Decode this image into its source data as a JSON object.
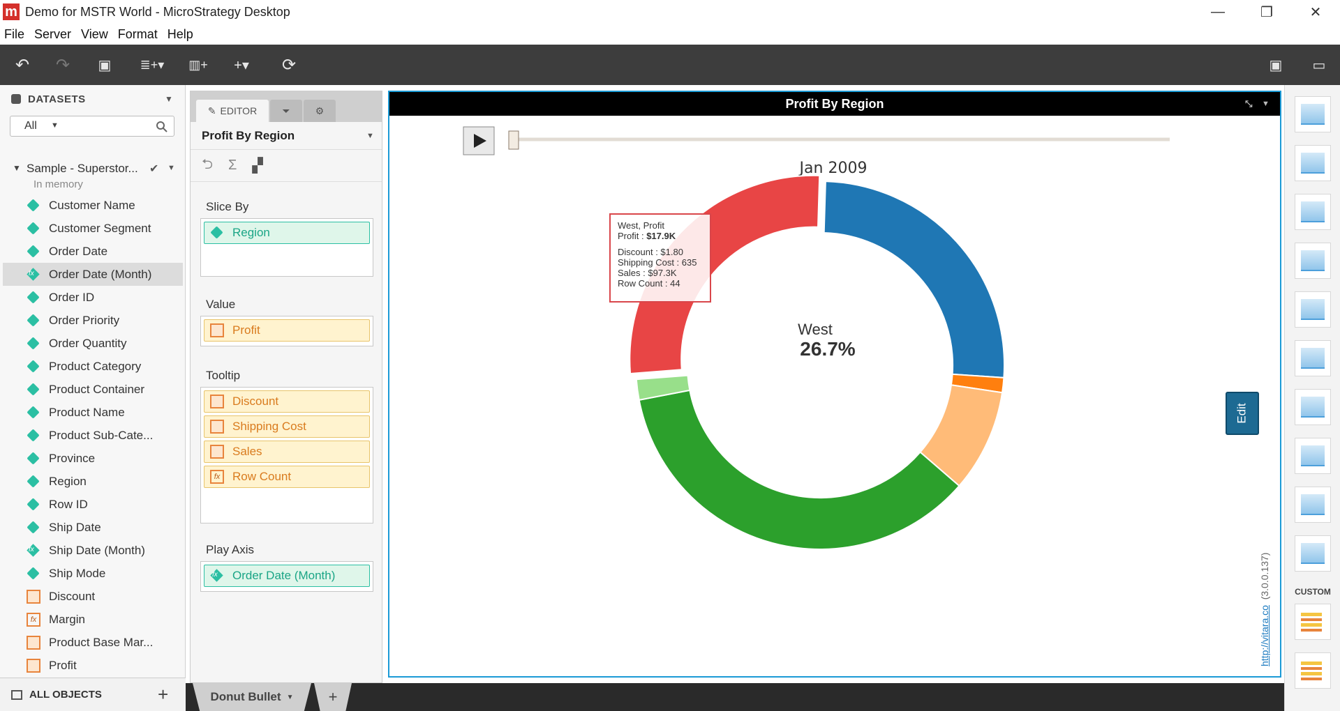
{
  "window": {
    "title": "Demo for MSTR World - MicroStrategy Desktop",
    "logo_text": "m",
    "controls": [
      "—",
      "❐",
      "✕"
    ]
  },
  "menu": [
    "File",
    "Server",
    "View",
    "Format",
    "Help"
  ],
  "toolbar": {
    "undo_icon": "↶",
    "redo_icon": "↷",
    "save_icon": "▣",
    "add_data_icon": "≣+▾",
    "add_viz_icon": "▥+",
    "add_icon": "+▾",
    "refresh_icon": "⟳",
    "present_icon": "▭",
    "share_icon": "▣"
  },
  "datasets": {
    "header": "DATASETS",
    "filter_value": "All",
    "dataset_name": "Sample - Superstor...",
    "dataset_status": "In memory",
    "items": [
      {
        "label": "Customer Name",
        "type": "attr"
      },
      {
        "label": "Customer Segment",
        "type": "attr"
      },
      {
        "label": "Order Date",
        "type": "attr"
      },
      {
        "label": "Order Date (Month)",
        "type": "derived"
      },
      {
        "label": "Order ID",
        "type": "attr"
      },
      {
        "label": "Order Priority",
        "type": "attr"
      },
      {
        "label": "Order Quantity",
        "type": "attr"
      },
      {
        "label": "Product Category",
        "type": "attr"
      },
      {
        "label": "Product Container",
        "type": "attr"
      },
      {
        "label": "Product Name",
        "type": "attr"
      },
      {
        "label": "Product Sub-Cate...",
        "type": "attr"
      },
      {
        "label": "Province",
        "type": "attr"
      },
      {
        "label": "Region",
        "type": "attr"
      },
      {
        "label": "Row ID",
        "type": "attr"
      },
      {
        "label": "Ship Date",
        "type": "attr"
      },
      {
        "label": "Ship Date (Month)",
        "type": "derived"
      },
      {
        "label": "Ship Mode",
        "type": "attr"
      },
      {
        "label": "Discount",
        "type": "metric"
      },
      {
        "label": "Margin",
        "type": "fx"
      },
      {
        "label": "Product Base Mar...",
        "type": "metric"
      },
      {
        "label": "Profit",
        "type": "metric"
      }
    ],
    "all_objects": "ALL OBJECTS"
  },
  "editor": {
    "tab_editor": "EDITOR",
    "title": "Profit By Region",
    "slice_by_label": "Slice By",
    "slice_by": [
      "Region"
    ],
    "value_label": "Value",
    "value": [
      "Profit"
    ],
    "tooltip_label": "Tooltip",
    "tooltip": [
      "Discount",
      "Shipping Cost",
      "Sales",
      "Row Count"
    ],
    "play_axis_label": "Play Axis",
    "play_axis": [
      "Order Date (Month)"
    ]
  },
  "viz": {
    "title": "Profit By Region",
    "period": "Jan 2009",
    "center_label": "West",
    "center_value": "26.7%",
    "edit_label": "Edit",
    "credit_link": "http://vitara.co",
    "credit_version": "(3.0.0.137)",
    "tooltip": {
      "line1": "West, Profit",
      "line2_label": "Profit : ",
      "line2_value": "$17.9K",
      "line3": "Discount : $1.80",
      "line4": "Shipping Cost : 635",
      "line5": "Sales : $97.3K",
      "line6": "Row Count : 44"
    }
  },
  "chart_data": {
    "type": "pie",
    "title": "Jan 2009",
    "categories": [
      "Blue",
      "Dark Orange",
      "Light Orange",
      "Green",
      "Light Green",
      "West"
    ],
    "values": [
      25.6,
      1.3,
      9.0,
      35.6,
      1.8,
      26.7
    ],
    "colors": [
      "#1f77b4",
      "#ff7f0e",
      "#ffbb78",
      "#2ca02c",
      "#98df8a",
      "#e84545"
    ],
    "hole": 0.72,
    "highlighted": "West"
  },
  "right_rail": {
    "custom_label": "CUSTOM",
    "items": [
      "grid-icon",
      "heatmap-icon",
      "bar-chart-icon",
      "line-chart-icon",
      "area-chart-icon",
      "bubble-chart-icon",
      "pie-chart-icon",
      "combo-chart-icon",
      "map-icon",
      "network-icon",
      "custom-bullet-icon",
      "custom-bar-icon"
    ]
  },
  "bottom": {
    "tab_label": "Donut Bullet",
    "add_tab": "+"
  }
}
